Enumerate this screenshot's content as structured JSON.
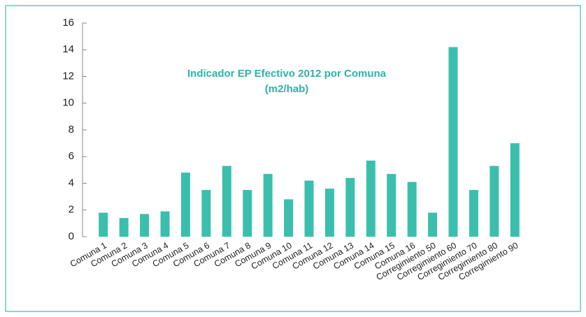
{
  "chart_data": {
    "type": "bar",
    "title": "Indicador EP Efectivo 2012 por Comuna",
    "subtitle": "(m2/hab)",
    "categories": [
      "Comuna 1",
      "Comuna 2",
      "Comuna 3",
      "Comuna 4",
      "Comuna 5",
      "Comuna 6",
      "Comuna 7",
      "Comuna 8",
      "Comuna 9",
      "Comuna 10",
      "Comuna 11",
      "Comuna 12",
      "Comuna 13",
      "Comuna 14",
      "Comuna 15",
      "Comuna 16",
      "Corregimiento 50",
      "Corregimiento 60",
      "Corregimiento 70",
      "Corregimiento 80",
      "Corregimiento 90"
    ],
    "values": [
      1.8,
      1.4,
      1.7,
      1.9,
      4.8,
      3.5,
      5.3,
      3.5,
      4.7,
      2.8,
      4.2,
      3.6,
      4.4,
      5.7,
      4.7,
      4.1,
      1.8,
      14.2,
      3.5,
      5.3,
      7.0
    ],
    "color": "#3bbfad",
    "ylim": [
      0,
      16
    ],
    "yticks": [
      0,
      2,
      4,
      6,
      8,
      10,
      12,
      14,
      16
    ],
    "grid": false
  }
}
